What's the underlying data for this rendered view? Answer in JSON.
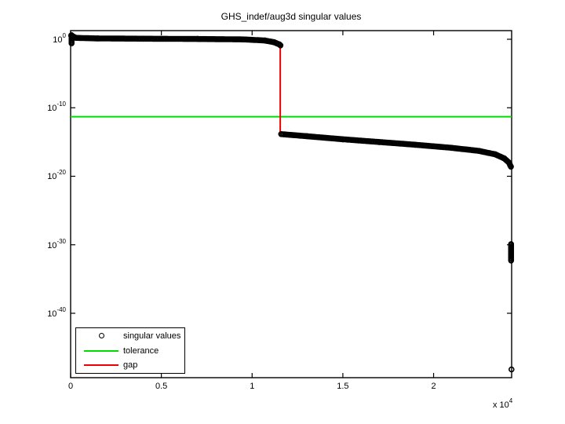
{
  "figure": {
    "title": "GHS_indef/aug3d singular values",
    "background": "#ffffff",
    "axis_color": "#000000"
  },
  "chart_data": {
    "type": "scatter",
    "title": "GHS_indef/aug3d singular values",
    "xlabel": "",
    "ylabel": "",
    "x_axis": {
      "lim": [
        0,
        24300
      ],
      "ticks": [
        {
          "value": 0,
          "label": "0"
        },
        {
          "value": 5000,
          "label": "0.5"
        },
        {
          "value": 10000,
          "label": "1"
        },
        {
          "value": 15000,
          "label": "1.5"
        },
        {
          "value": 20000,
          "label": "2"
        }
      ],
      "multiplier_base": "x 10",
      "multiplier_exp": "4"
    },
    "y_axis": {
      "scale": "log10",
      "lim_exp": [
        1.26,
        -49.4
      ],
      "ticks": [
        {
          "exp": 0,
          "base": "10",
          "exp_label": "0"
        },
        {
          "exp": -10,
          "base": "10",
          "exp_label": "-10"
        },
        {
          "exp": -20,
          "base": "10",
          "exp_label": "-20"
        },
        {
          "exp": -30,
          "base": "10",
          "exp_label": "-30"
        },
        {
          "exp": -40,
          "base": "10",
          "exp_label": "-40"
        }
      ],
      "grid": false
    },
    "series": [
      {
        "name": "singular values",
        "kind": "scatter-markers",
        "marker": "open-circle",
        "color": "#000000",
        "note": "points given as [index, log10(sigma)] anchor vertices; ~24300 dense points in original",
        "segments": [
          [
            [
              50,
              0.6
            ],
            [
              50,
              -0.6
            ]
          ],
          [
            [
              30,
              0.55
            ],
            [
              300,
              0.2
            ],
            [
              1500,
              0.12
            ],
            [
              4000,
              0.08
            ],
            [
              7000,
              0.04
            ],
            [
              9500,
              -0.02
            ],
            [
              10700,
              -0.18
            ],
            [
              11200,
              -0.42
            ],
            [
              11500,
              -0.75
            ],
            [
              11560,
              -0.9
            ]
          ],
          [
            [
              11600,
              -13.85
            ],
            [
              13000,
              -14.15
            ],
            [
              15000,
              -14.6
            ],
            [
              17000,
              -15.0
            ],
            [
              19000,
              -15.4
            ],
            [
              21000,
              -15.85
            ],
            [
              22500,
              -16.3
            ],
            [
              23400,
              -16.8
            ],
            [
              23900,
              -17.4
            ],
            [
              24150,
              -18.0
            ],
            [
              24260,
              -18.6
            ]
          ],
          [
            [
              24270,
              -29.9
            ],
            [
              24270,
              -32.3
            ]
          ],
          [
            [
              24290,
              -48.2
            ]
          ]
        ]
      },
      {
        "name": "tolerance",
        "kind": "hline",
        "color": "#00dd00",
        "value_exp": -11.3,
        "x_from": 0,
        "x_to": 24300
      },
      {
        "name": "gap",
        "kind": "vline",
        "color": "#ee0000",
        "x": 11550,
        "from_exp": -0.85,
        "to_exp": -13.9
      }
    ],
    "legend": {
      "position": "south-west",
      "items": [
        {
          "label": "singular values",
          "swatch": "marker",
          "color": "#000000"
        },
        {
          "label": "tolerance",
          "swatch": "line",
          "color": "#00dd00"
        },
        {
          "label": "gap",
          "swatch": "line",
          "color": "#ee0000"
        }
      ]
    }
  }
}
